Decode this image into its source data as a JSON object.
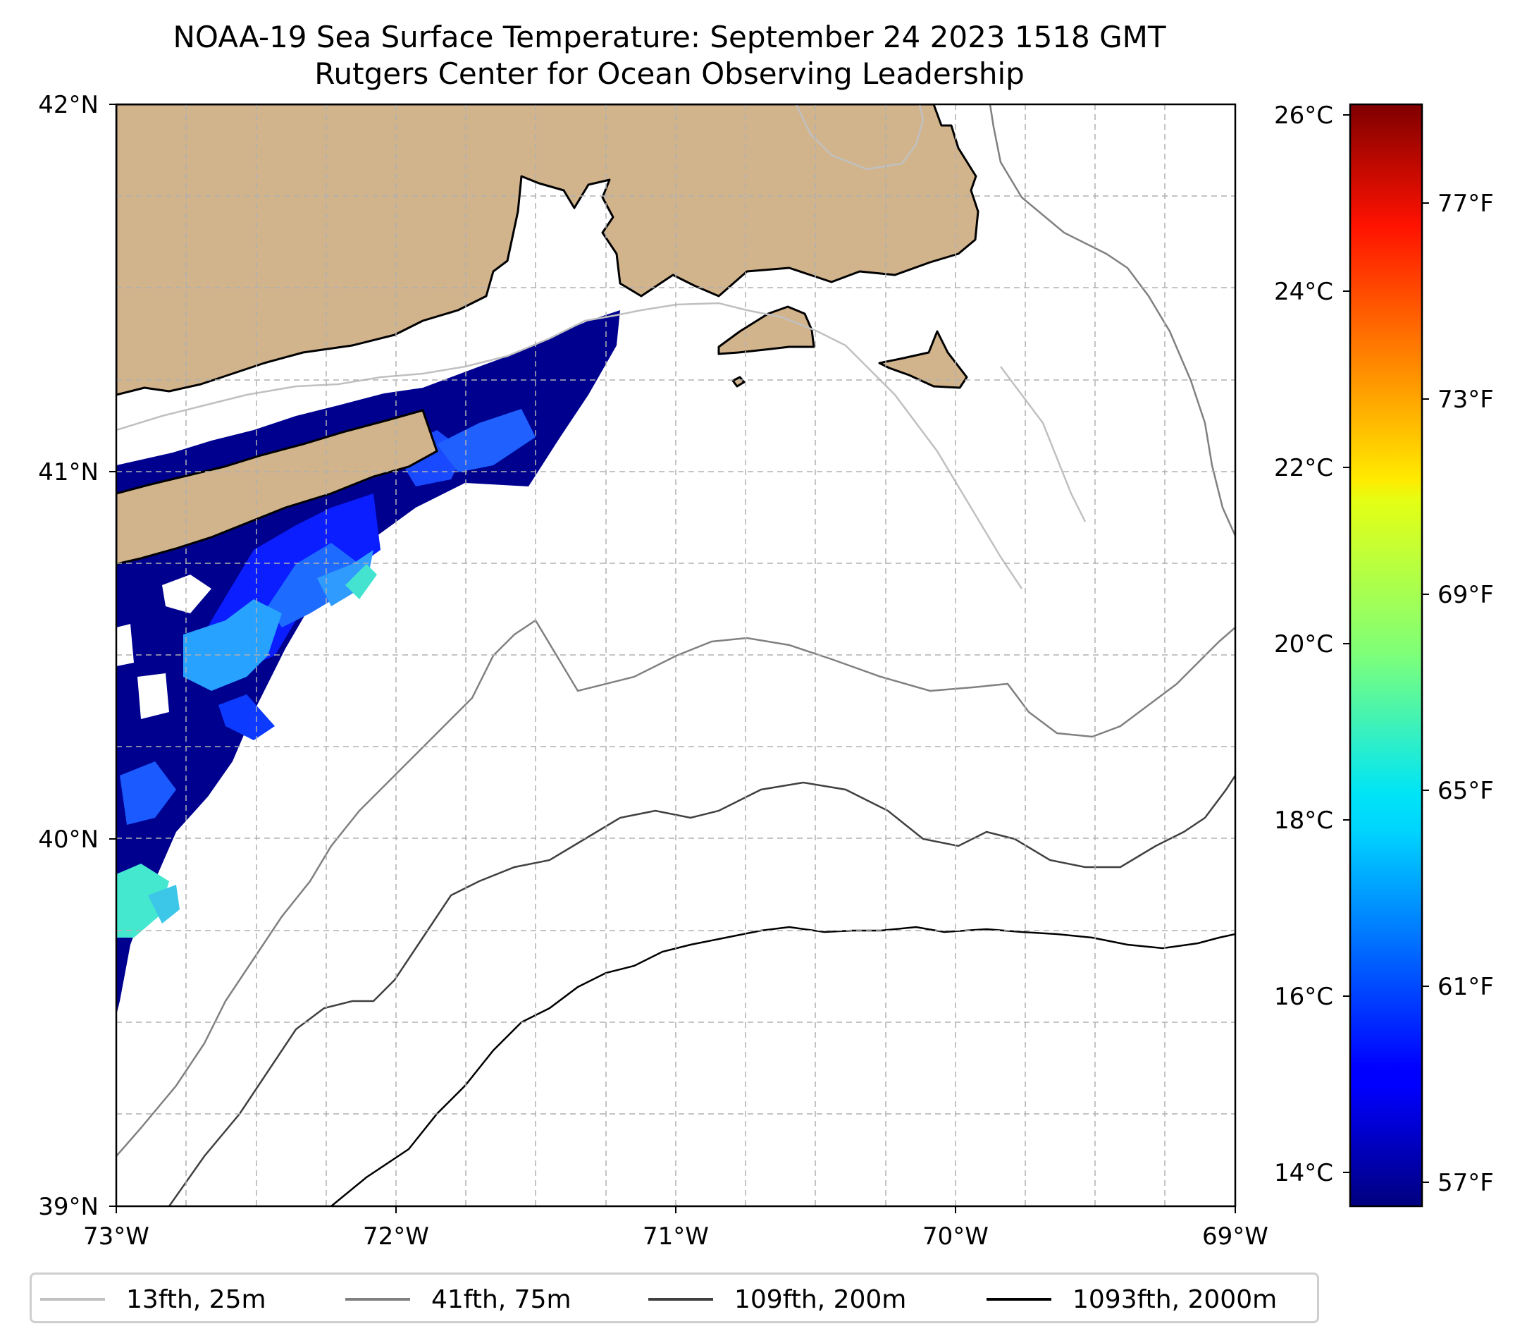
{
  "title": {
    "line1": "NOAA-19 Sea Surface Temperature: September 24 2023 1518 GMT",
    "line2": "Rutgers Center for Ocean Observing Leadership"
  },
  "map": {
    "lat_labels": [
      "42°N",
      "41°N",
      "40°N",
      "39°N"
    ],
    "lon_labels": [
      "73°W",
      "72°W",
      "71°W",
      "70°W",
      "69°W"
    ],
    "extent": {
      "lon": [
        -73,
        -69
      ],
      "lat": [
        39,
        42
      ]
    },
    "land_color": "#d2b48c",
    "coast_color": "#000000"
  },
  "colorbar": {
    "celsius_labels": [
      "26°C",
      "24°C",
      "22°C",
      "20°C",
      "18°C",
      "16°C",
      "14°C"
    ],
    "fahrenheit_labels": [
      "77°F",
      "73°F",
      "69°F",
      "65°F",
      "61°F",
      "57°F"
    ],
    "range_c": [
      13.75,
      26.25
    ],
    "colormap": "jet"
  },
  "legend": {
    "items": [
      {
        "label": "13fth, 25m",
        "color": "#c0c0c0"
      },
      {
        "label": "41fth, 75m",
        "color": "#808080"
      },
      {
        "label": "109fth, 200m",
        "color": "#404040"
      },
      {
        "label": "1093fth, 2000m",
        "color": "#000000"
      }
    ]
  }
}
